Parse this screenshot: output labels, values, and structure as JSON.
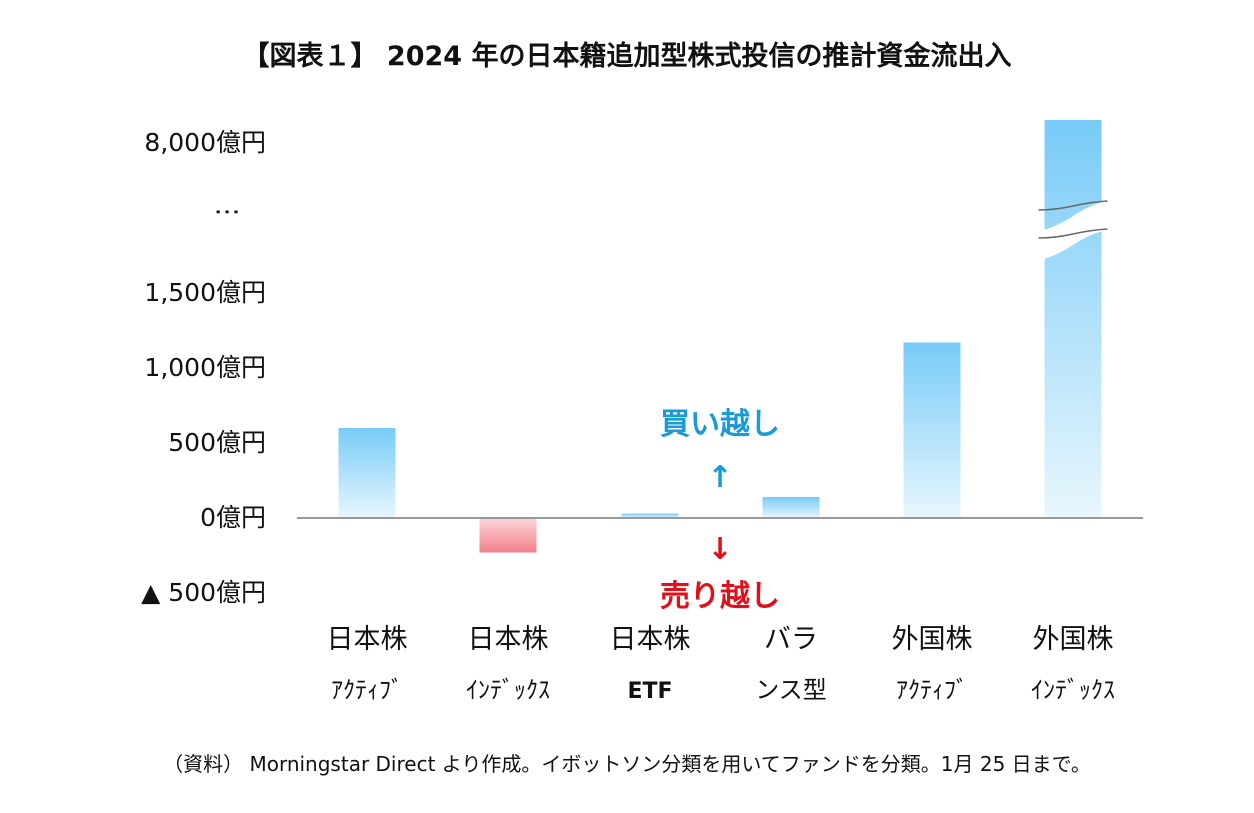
{
  "title": "【図表１】 2024 年の日本籍追加型株式投信の推計資金流出入",
  "source_note": "（資料） Morningstar Direct より作成。イボットソン分類を用いてファンドを分類。1月 25 日まで。",
  "annotations": {
    "buy": "買い越し",
    "buy_arrow": "↑",
    "sell": "売り越し",
    "sell_arrow": "↓"
  },
  "colors": {
    "positive_bar": "#79ccf8",
    "negative_bar": "#f2818a",
    "buy_text": "#1a9ad6",
    "sell_text": "#e0101a",
    "axis_line": "#999999"
  },
  "chart_data": {
    "type": "bar",
    "title": "【図表１】 2024 年の日本籍追加型株式投信の推計資金流出入",
    "xlabel": "",
    "ylabel": "",
    "unit": "億円",
    "axis_break": true,
    "y_ticks": [
      {
        "value": 8000,
        "label": "8,000億円"
      },
      {
        "value": null,
        "label": "⋮"
      },
      {
        "value": 1500,
        "label": "1,500億円"
      },
      {
        "value": 1000,
        "label": "1,000億円"
      },
      {
        "value": 500,
        "label": "500億円"
      },
      {
        "value": 0,
        "label": "0億円"
      },
      {
        "value": -500,
        "label": "▲ 500億円"
      }
    ],
    "categories": [
      {
        "line1": "日本株",
        "line2": "ｱｸﾃｨﾌﾞ"
      },
      {
        "line1": "日本株",
        "line2": "ｲﾝﾃﾞｯｸｽ"
      },
      {
        "line1": "日本株",
        "line2": "ETF"
      },
      {
        "line1": "バラ",
        "line2": "ンス型"
      },
      {
        "line1": "外国株",
        "line2": "ｱｸﾃｨﾌﾞ"
      },
      {
        "line1": "外国株",
        "line2": "ｲﾝﾃﾞｯｸｽ"
      }
    ],
    "values": [
      600,
      -230,
      30,
      140,
      1170,
      8300
    ],
    "ylim": [
      -500,
      8000
    ],
    "grid": false,
    "legend": "none"
  }
}
